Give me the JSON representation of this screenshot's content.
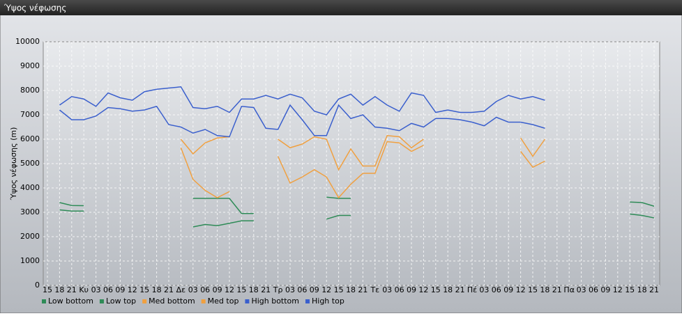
{
  "chart_data": {
    "type": "line",
    "title": "Ύψος νέφωσης",
    "y_label": "Ύψος νέφωσης (m)",
    "categories": [
      "15",
      "18",
      "21",
      "Κυ",
      "03",
      "06",
      "09",
      "12",
      "15",
      "18",
      "21",
      "Δε",
      "03",
      "06",
      "09",
      "12",
      "15",
      "18",
      "21",
      "Τρ",
      "03",
      "06",
      "09",
      "12",
      "15",
      "18",
      "21",
      "Τε",
      "03",
      "06",
      "09",
      "12",
      "15",
      "18",
      "21",
      "Πέ",
      "03",
      "06",
      "09",
      "12",
      "15",
      "18",
      "21",
      "Πα",
      "03",
      "06",
      "09",
      "12",
      "15",
      "18",
      "21"
    ],
    "ylim": [
      0,
      10000
    ],
    "yticks": [
      0,
      1000,
      2000,
      3000,
      4000,
      5000,
      6000,
      7000,
      8000,
      9000,
      10000
    ],
    "grid": true,
    "legend": "bottom",
    "series": [
      {
        "name": "Low bottom",
        "color": "#2e8b57",
        "values": [
          null,
          3100,
          3050,
          3050,
          null,
          null,
          null,
          null,
          null,
          null,
          null,
          null,
          2400,
          2500,
          2450,
          2550,
          2650,
          2650,
          null,
          null,
          null,
          null,
          null,
          2720,
          2870,
          2870,
          null,
          null,
          null,
          null,
          null,
          null,
          null,
          null,
          null,
          null,
          null,
          null,
          null,
          null,
          null,
          null,
          null,
          null,
          null,
          null,
          null,
          null,
          2930,
          2870,
          2770
        ]
      },
      {
        "name": "Low top",
        "color": "#2e8b57",
        "values": [
          null,
          3400,
          3280,
          3270,
          null,
          null,
          null,
          null,
          null,
          null,
          null,
          null,
          3570,
          3570,
          3570,
          3570,
          2950,
          2950,
          null,
          null,
          null,
          null,
          null,
          3620,
          3570,
          3570,
          null,
          null,
          null,
          null,
          null,
          null,
          null,
          null,
          null,
          null,
          null,
          null,
          null,
          null,
          null,
          null,
          null,
          null,
          null,
          null,
          null,
          null,
          3420,
          3400,
          3250
        ]
      },
      {
        "name": "Med bottom",
        "color": "#f0a040",
        "values": [
          null,
          null,
          null,
          null,
          null,
          null,
          null,
          null,
          null,
          null,
          null,
          5650,
          4350,
          3900,
          3600,
          3850,
          null,
          null,
          null,
          5300,
          4200,
          4450,
          4750,
          4450,
          3600,
          4150,
          4600,
          4600,
          5900,
          5850,
          5500,
          5750,
          null,
          null,
          null,
          null,
          null,
          null,
          null,
          5500,
          4850,
          5100,
          null,
          null,
          null,
          null,
          null,
          null,
          null,
          null,
          null
        ]
      },
      {
        "name": "Med top",
        "color": "#f0a040",
        "values": [
          null,
          null,
          null,
          null,
          null,
          null,
          null,
          null,
          null,
          null,
          null,
          6000,
          5400,
          5850,
          6050,
          6100,
          null,
          null,
          null,
          6000,
          5650,
          5800,
          6100,
          6000,
          4750,
          5600,
          4900,
          4900,
          6150,
          6100,
          5650,
          6000,
          null,
          null,
          null,
          null,
          null,
          null,
          null,
          6050,
          5300,
          6000,
          null,
          null,
          null,
          null,
          null,
          null,
          null,
          null,
          null
        ]
      },
      {
        "name": "High bottom",
        "color": "#3a5fcd",
        "values": [
          null,
          7200,
          6800,
          6800,
          6950,
          7300,
          7250,
          7150,
          7200,
          7350,
          6600,
          6500,
          6250,
          6400,
          6150,
          6100,
          7350,
          7300,
          6450,
          6400,
          7400,
          6800,
          6150,
          6150,
          7400,
          6850,
          7000,
          6500,
          6450,
          6350,
          6650,
          6500,
          6850,
          6850,
          6800,
          6700,
          6550,
          6900,
          6700,
          6700,
          6600,
          6450,
          null,
          null,
          null,
          null,
          null,
          null,
          null,
          null,
          null
        ]
      },
      {
        "name": "High top",
        "color": "#3a5fcd",
        "values": [
          null,
          7400,
          7750,
          7650,
          7350,
          7900,
          7700,
          7600,
          7950,
          8050,
          8100,
          8150,
          7300,
          7250,
          7350,
          7100,
          7650,
          7650,
          7800,
          7650,
          7850,
          7700,
          7150,
          7000,
          7650,
          7850,
          7400,
          7750,
          7400,
          7150,
          7900,
          7800,
          7100,
          7200,
          7100,
          7100,
          7150,
          7550,
          7800,
          7650,
          7750,
          7600,
          null,
          null,
          null,
          null,
          null,
          null,
          null,
          null,
          null
        ]
      }
    ]
  }
}
